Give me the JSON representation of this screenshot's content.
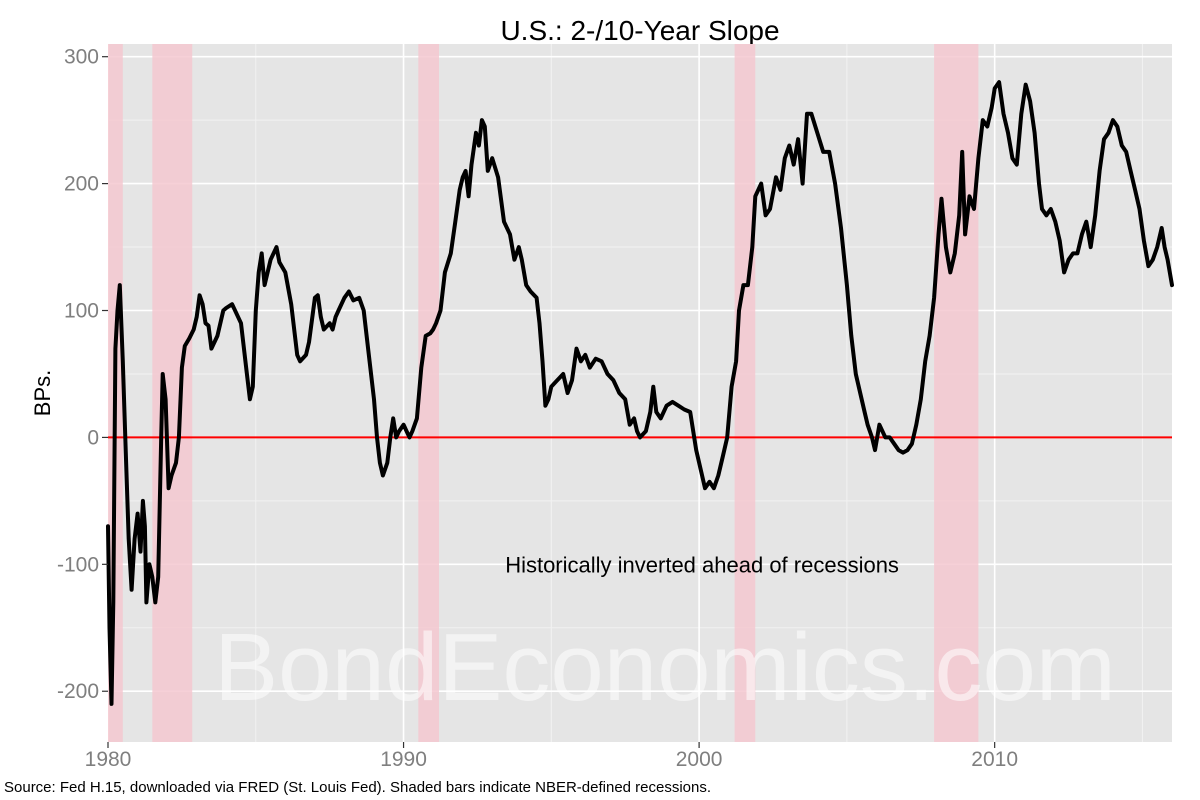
{
  "chart_data": {
    "type": "line",
    "title": "U.S.: 2-/10-Year Slope",
    "ylabel": "BPs.",
    "xlabel": "",
    "xlim": [
      1980.0,
      2016.0
    ],
    "ylim": [
      -240,
      310
    ],
    "x_ticks": [
      {
        "value": 1980,
        "label": "1980"
      },
      {
        "value": 1990,
        "label": "1990"
      },
      {
        "value": 2000,
        "label": "2000"
      },
      {
        "value": 2010,
        "label": "2010"
      }
    ],
    "y_ticks": [
      {
        "value": -200,
        "label": "-200"
      },
      {
        "value": -100,
        "label": "-100"
      },
      {
        "value": 0,
        "label": "0"
      },
      {
        "value": 100,
        "label": "100"
      },
      {
        "value": 200,
        "label": "200"
      },
      {
        "value": 300,
        "label": "300"
      }
    ],
    "recessions": [
      {
        "start": 1980.0,
        "end": 1980.5
      },
      {
        "start": 1981.5,
        "end": 1982.85
      },
      {
        "start": 1990.5,
        "end": 1991.2
      },
      {
        "start": 2001.2,
        "end": 2001.9
      },
      {
        "start": 2007.95,
        "end": 2009.45
      }
    ],
    "reference_line": {
      "y": 0,
      "color": "#ff0000"
    },
    "annotation": {
      "text": "Historically inverted ahead of recessions",
      "x": 2000.1,
      "y": -100
    },
    "watermark": "BondEconomics.com",
    "caption": "Source: Fed H.15, downloaded via FRED (St. Louis Fed). Shaded bars indicate NBER-defined recessions.",
    "colors": {
      "panel": "#e5e5e5",
      "grid_major": "#ffffff",
      "grid_minor": "#f2f2f2",
      "recession": "#f4c8d0",
      "line": "#000000",
      "tick_text": "#7f7f7f"
    },
    "series": [
      {
        "points": [
          [
            1980.0,
            -70
          ],
          [
            1980.05,
            -150
          ],
          [
            1980.12,
            -210
          ],
          [
            1980.18,
            -130
          ],
          [
            1980.25,
            70
          ],
          [
            1980.32,
            100
          ],
          [
            1980.4,
            120
          ],
          [
            1980.5,
            60
          ],
          [
            1980.6,
            -10
          ],
          [
            1980.7,
            -80
          ],
          [
            1980.8,
            -120
          ],
          [
            1980.9,
            -80
          ],
          [
            1981.0,
            -60
          ],
          [
            1981.1,
            -90
          ],
          [
            1981.18,
            -50
          ],
          [
            1981.25,
            -70
          ],
          [
            1981.3,
            -130
          ],
          [
            1981.4,
            -100
          ],
          [
            1981.5,
            -110
          ],
          [
            1981.6,
            -130
          ],
          [
            1981.7,
            -110
          ],
          [
            1981.8,
            0
          ],
          [
            1981.85,
            50
          ],
          [
            1981.95,
            30
          ],
          [
            1982.05,
            -40
          ],
          [
            1982.15,
            -30
          ],
          [
            1982.3,
            -20
          ],
          [
            1982.4,
            0
          ],
          [
            1982.5,
            55
          ],
          [
            1982.6,
            72
          ],
          [
            1982.75,
            78
          ],
          [
            1982.9,
            85
          ],
          [
            1983.0,
            95
          ],
          [
            1983.1,
            112
          ],
          [
            1983.2,
            105
          ],
          [
            1983.3,
            90
          ],
          [
            1983.4,
            88
          ],
          [
            1983.5,
            70
          ],
          [
            1983.7,
            80
          ],
          [
            1983.9,
            100
          ],
          [
            1984.0,
            102
          ],
          [
            1984.2,
            105
          ],
          [
            1984.5,
            90
          ],
          [
            1984.7,
            50
          ],
          [
            1984.8,
            30
          ],
          [
            1984.9,
            40
          ],
          [
            1985.0,
            100
          ],
          [
            1985.1,
            130
          ],
          [
            1985.2,
            145
          ],
          [
            1985.3,
            120
          ],
          [
            1985.4,
            130
          ],
          [
            1985.5,
            140
          ],
          [
            1985.7,
            150
          ],
          [
            1985.8,
            138
          ],
          [
            1986.0,
            130
          ],
          [
            1986.2,
            105
          ],
          [
            1986.4,
            65
          ],
          [
            1986.5,
            60
          ],
          [
            1986.7,
            65
          ],
          [
            1986.8,
            75
          ],
          [
            1987.0,
            110
          ],
          [
            1987.1,
            112
          ],
          [
            1987.2,
            95
          ],
          [
            1987.3,
            85
          ],
          [
            1987.5,
            90
          ],
          [
            1987.6,
            85
          ],
          [
            1987.7,
            95
          ],
          [
            1987.8,
            100
          ],
          [
            1988.0,
            110
          ],
          [
            1988.15,
            115
          ],
          [
            1988.3,
            108
          ],
          [
            1988.5,
            110
          ],
          [
            1988.65,
            100
          ],
          [
            1988.8,
            70
          ],
          [
            1989.0,
            30
          ],
          [
            1989.1,
            0
          ],
          [
            1989.2,
            -20
          ],
          [
            1989.3,
            -30
          ],
          [
            1989.45,
            -20
          ],
          [
            1989.55,
            0
          ],
          [
            1989.65,
            15
          ],
          [
            1989.75,
            0
          ],
          [
            1989.85,
            5
          ],
          [
            1990.0,
            10
          ],
          [
            1990.1,
            5
          ],
          [
            1990.2,
            0
          ],
          [
            1990.3,
            5
          ],
          [
            1990.45,
            15
          ],
          [
            1990.6,
            55
          ],
          [
            1990.75,
            80
          ],
          [
            1990.9,
            82
          ],
          [
            1991.0,
            85
          ],
          [
            1991.1,
            90
          ],
          [
            1991.25,
            100
          ],
          [
            1991.4,
            130
          ],
          [
            1991.6,
            145
          ],
          [
            1991.75,
            170
          ],
          [
            1991.9,
            195
          ],
          [
            1992.0,
            205
          ],
          [
            1992.1,
            210
          ],
          [
            1992.2,
            190
          ],
          [
            1992.3,
            215
          ],
          [
            1992.45,
            240
          ],
          [
            1992.55,
            230
          ],
          [
            1992.65,
            250
          ],
          [
            1992.75,
            245
          ],
          [
            1992.85,
            210
          ],
          [
            1993.0,
            220
          ],
          [
            1993.2,
            205
          ],
          [
            1993.4,
            170
          ],
          [
            1993.6,
            160
          ],
          [
            1993.75,
            140
          ],
          [
            1993.9,
            150
          ],
          [
            1994.0,
            140
          ],
          [
            1994.15,
            120
          ],
          [
            1994.3,
            115
          ],
          [
            1994.5,
            110
          ],
          [
            1994.6,
            90
          ],
          [
            1994.7,
            60
          ],
          [
            1994.8,
            25
          ],
          [
            1994.9,
            30
          ],
          [
            1995.0,
            40
          ],
          [
            1995.2,
            45
          ],
          [
            1995.4,
            50
          ],
          [
            1995.55,
            35
          ],
          [
            1995.7,
            45
          ],
          [
            1995.85,
            70
          ],
          [
            1996.0,
            60
          ],
          [
            1996.15,
            65
          ],
          [
            1996.3,
            55
          ],
          [
            1996.5,
            62
          ],
          [
            1996.7,
            60
          ],
          [
            1996.9,
            50
          ],
          [
            1997.1,
            45
          ],
          [
            1997.3,
            35
          ],
          [
            1997.5,
            30
          ],
          [
            1997.65,
            10
          ],
          [
            1997.8,
            15
          ],
          [
            1997.9,
            5
          ],
          [
            1998.0,
            0
          ],
          [
            1998.2,
            5
          ],
          [
            1998.35,
            20
          ],
          [
            1998.45,
            40
          ],
          [
            1998.55,
            20
          ],
          [
            1998.7,
            15
          ],
          [
            1998.9,
            25
          ],
          [
            1999.1,
            28
          ],
          [
            1999.3,
            25
          ],
          [
            1999.5,
            22
          ],
          [
            1999.7,
            20
          ],
          [
            1999.8,
            5
          ],
          [
            1999.9,
            -10
          ],
          [
            2000.05,
            -25
          ],
          [
            2000.2,
            -40
          ],
          [
            2000.35,
            -35
          ],
          [
            2000.5,
            -40
          ],
          [
            2000.65,
            -30
          ],
          [
            2000.8,
            -15
          ],
          [
            2000.95,
            0
          ],
          [
            2001.1,
            40
          ],
          [
            2001.25,
            60
          ],
          [
            2001.35,
            100
          ],
          [
            2001.5,
            120
          ],
          [
            2001.65,
            120
          ],
          [
            2001.8,
            150
          ],
          [
            2001.9,
            190
          ],
          [
            2002.1,
            200
          ],
          [
            2002.25,
            175
          ],
          [
            2002.4,
            180
          ],
          [
            2002.6,
            205
          ],
          [
            2002.75,
            195
          ],
          [
            2002.9,
            220
          ],
          [
            2003.05,
            230
          ],
          [
            2003.2,
            215
          ],
          [
            2003.35,
            235
          ],
          [
            2003.5,
            200
          ],
          [
            2003.65,
            255
          ],
          [
            2003.8,
            255
          ],
          [
            2004.0,
            240
          ],
          [
            2004.2,
            225
          ],
          [
            2004.4,
            225
          ],
          [
            2004.6,
            200
          ],
          [
            2004.8,
            165
          ],
          [
            2005.0,
            120
          ],
          [
            2005.15,
            80
          ],
          [
            2005.3,
            50
          ],
          [
            2005.45,
            35
          ],
          [
            2005.6,
            20
          ],
          [
            2005.7,
            10
          ],
          [
            2005.85,
            0
          ],
          [
            2005.95,
            -10
          ],
          [
            2006.1,
            10
          ],
          [
            2006.3,
            0
          ],
          [
            2006.45,
            0
          ],
          [
            2006.6,
            -5
          ],
          [
            2006.75,
            -10
          ],
          [
            2006.9,
            -12
          ],
          [
            2007.05,
            -10
          ],
          [
            2007.2,
            -5
          ],
          [
            2007.35,
            10
          ],
          [
            2007.5,
            30
          ],
          [
            2007.65,
            60
          ],
          [
            2007.8,
            80
          ],
          [
            2007.95,
            110
          ],
          [
            2008.1,
            160
          ],
          [
            2008.2,
            188
          ],
          [
            2008.35,
            150
          ],
          [
            2008.5,
            130
          ],
          [
            2008.65,
            145
          ],
          [
            2008.8,
            175
          ],
          [
            2008.9,
            225
          ],
          [
            2009.0,
            160
          ],
          [
            2009.15,
            190
          ],
          [
            2009.3,
            180
          ],
          [
            2009.45,
            220
          ],
          [
            2009.6,
            250
          ],
          [
            2009.75,
            245
          ],
          [
            2009.9,
            260
          ],
          [
            2010.0,
            275
          ],
          [
            2010.15,
            280
          ],
          [
            2010.3,
            255
          ],
          [
            2010.45,
            240
          ],
          [
            2010.6,
            220
          ],
          [
            2010.75,
            215
          ],
          [
            2010.9,
            255
          ],
          [
            2011.05,
            278
          ],
          [
            2011.2,
            265
          ],
          [
            2011.35,
            240
          ],
          [
            2011.5,
            200
          ],
          [
            2011.6,
            180
          ],
          [
            2011.75,
            175
          ],
          [
            2011.9,
            180
          ],
          [
            2012.05,
            170
          ],
          [
            2012.2,
            155
          ],
          [
            2012.35,
            130
          ],
          [
            2012.5,
            140
          ],
          [
            2012.65,
            145
          ],
          [
            2012.8,
            145
          ],
          [
            2012.95,
            160
          ],
          [
            2013.1,
            170
          ],
          [
            2013.25,
            150
          ],
          [
            2013.4,
            175
          ],
          [
            2013.55,
            210
          ],
          [
            2013.7,
            235
          ],
          [
            2013.85,
            240
          ],
          [
            2014.0,
            250
          ],
          [
            2014.15,
            245
          ],
          [
            2014.3,
            230
          ],
          [
            2014.45,
            225
          ],
          [
            2014.6,
            210
          ],
          [
            2014.75,
            195
          ],
          [
            2014.9,
            180
          ],
          [
            2015.05,
            155
          ],
          [
            2015.2,
            135
          ],
          [
            2015.35,
            140
          ],
          [
            2015.5,
            150
          ],
          [
            2015.65,
            165
          ],
          [
            2015.75,
            150
          ],
          [
            2015.85,
            140
          ],
          [
            2016.0,
            120
          ]
        ]
      }
    ]
  }
}
